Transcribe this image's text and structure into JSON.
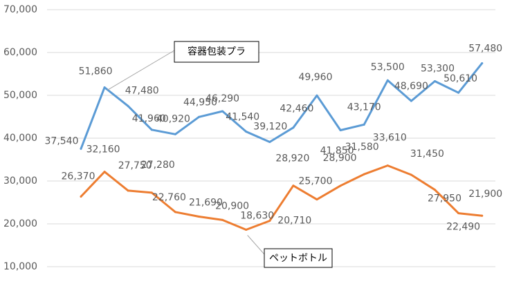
{
  "chart_data": {
    "type": "line",
    "ylim": [
      10000,
      70000
    ],
    "yticks": [
      10000,
      20000,
      30000,
      40000,
      50000,
      60000,
      70000
    ],
    "ytick_labels": [
      "10,000",
      "20,000",
      "30,000",
      "40,000",
      "50,000",
      "60,000",
      "70,000"
    ],
    "grid": true,
    "series": [
      {
        "name": "容器包装プラ",
        "color": "#5B9BD5",
        "values": [
          37540,
          51860,
          47480,
          41960,
          40920,
          44950,
          46290,
          41540,
          39120,
          42460,
          49960,
          41850,
          43170,
          53500,
          48690,
          53300,
          50610,
          57480
        ],
        "labels": [
          "37,540",
          "51,860",
          "47,480",
          "41,960",
          "40,920",
          "44,950",
          "46,290",
          "41,540",
          "39,120",
          "42,460",
          "49,960",
          "41,850",
          "43,170",
          "53,500",
          "48,690",
          "53,300",
          "50,610",
          "57,480"
        ]
      },
      {
        "name": "ペットボトル",
        "color": "#ED7D31",
        "values": [
          26370,
          32160,
          27750,
          27280,
          22760,
          21690,
          20900,
          18630,
          20710,
          28920,
          25700,
          28900,
          31580,
          33610,
          31450,
          27950,
          22490,
          21900
        ],
        "labels": [
          "26,370",
          "32,160",
          "27,750",
          "27,280",
          "22,760",
          "21,690",
          "20,900",
          "18,630",
          "20,710",
          "28,920",
          "25,700",
          "28,900",
          "31,580",
          "33,610",
          "31,450",
          "27,950",
          "22,490",
          "21,900"
        ]
      }
    ]
  }
}
